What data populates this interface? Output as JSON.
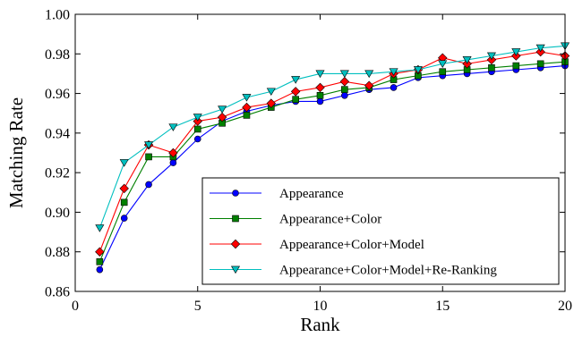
{
  "chart_data": {
    "type": "line",
    "xlabel": "Rank",
    "ylabel": "Matching Rate",
    "xlim": [
      0,
      20
    ],
    "ylim": [
      0.86,
      1.0
    ],
    "xticks": [
      0,
      5,
      10,
      15,
      20
    ],
    "yticks": [
      0.86,
      0.88,
      0.9,
      0.92,
      0.94,
      0.96,
      0.98,
      1.0
    ],
    "xtick_labels": [
      "0",
      "5",
      "10",
      "15",
      "20"
    ],
    "ytick_labels": [
      "0.86",
      "0.88",
      "0.90",
      "0.92",
      "0.94",
      "0.96",
      "0.98",
      "1.00"
    ],
    "grid": false,
    "legend_position": "bottom-right",
    "x": [
      1,
      2,
      3,
      4,
      5,
      6,
      7,
      8,
      9,
      10,
      11,
      12,
      13,
      14,
      15,
      16,
      17,
      18,
      19,
      20
    ],
    "series": [
      {
        "name": "Appearance",
        "color": "#0000ff",
        "marker": "circle",
        "values": [
          0.871,
          0.897,
          0.914,
          0.925,
          0.937,
          0.946,
          0.951,
          0.954,
          0.956,
          0.956,
          0.959,
          0.962,
          0.963,
          0.968,
          0.969,
          0.97,
          0.971,
          0.972,
          0.973,
          0.974
        ]
      },
      {
        "name": "Appearance+Color",
        "color": "#008000",
        "marker": "square",
        "values": [
          0.875,
          0.905,
          0.928,
          0.928,
          0.942,
          0.945,
          0.949,
          0.953,
          0.957,
          0.959,
          0.962,
          0.963,
          0.967,
          0.969,
          0.971,
          0.972,
          0.973,
          0.974,
          0.975,
          0.976
        ]
      },
      {
        "name": "Appearance+Color+Model",
        "color": "#ff0000",
        "marker": "diamond",
        "values": [
          0.88,
          0.912,
          0.934,
          0.93,
          0.946,
          0.948,
          0.953,
          0.955,
          0.961,
          0.963,
          0.966,
          0.964,
          0.97,
          0.972,
          0.978,
          0.975,
          0.977,
          0.979,
          0.981,
          0.979
        ]
      },
      {
        "name": "Appearance+Color+Model+Re-Ranking",
        "color": "#00bfbf",
        "marker": "triangle-down",
        "values": [
          0.892,
          0.925,
          0.934,
          0.943,
          0.948,
          0.952,
          0.958,
          0.961,
          0.967,
          0.97,
          0.97,
          0.97,
          0.971,
          0.972,
          0.975,
          0.977,
          0.979,
          0.981,
          0.983,
          0.984
        ]
      }
    ]
  }
}
